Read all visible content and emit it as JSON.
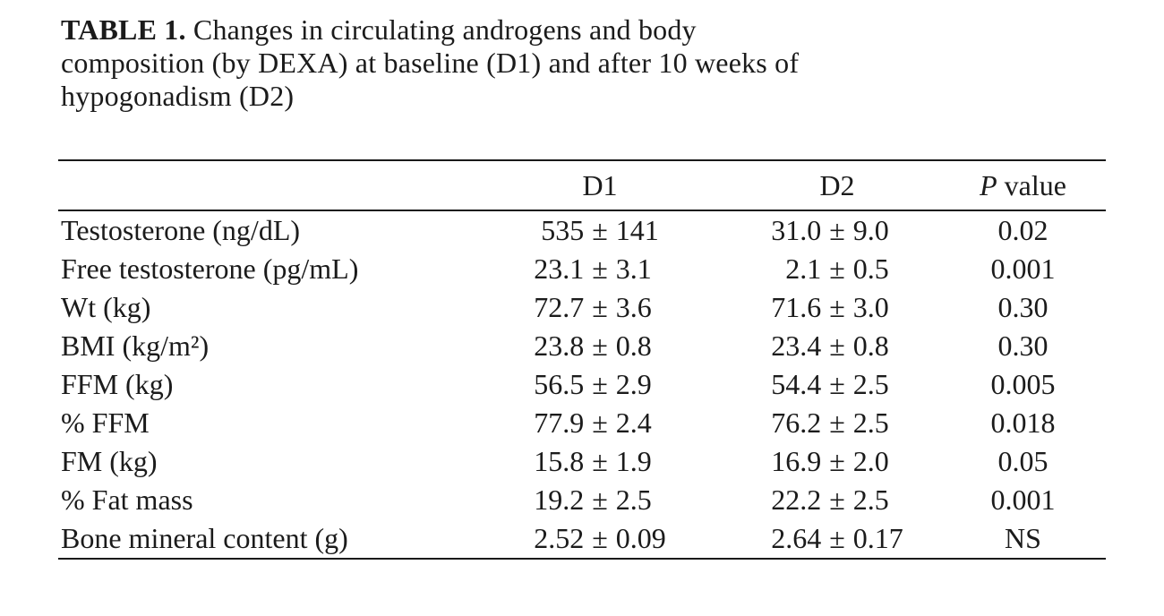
{
  "page": {
    "background": "#ffffff",
    "text_color": "#1b1b1b",
    "rule_color": "#1a1a1a"
  },
  "caption": {
    "label": "TABLE 1.",
    "lines": [
      "Changes in circulating androgens and body",
      "composition (by DEXA) at baseline (D1) and after 10 weeks of",
      "hypogonadism (D2)"
    ],
    "full_text": "TABLE 1. Changes in circulating androgens and body composition (by DEXA) at baseline (D1) and after 10 weeks of hypogonadism (D2)"
  },
  "table": {
    "plus_minus": "±",
    "headers": {
      "parameter": "",
      "d1": "D1",
      "d2": "D2",
      "p_italic": "P",
      "p_rest": "value"
    },
    "rows": [
      {
        "label": "Testosterone (ng/dL)",
        "d1_mean": "535",
        "d1_sd": "141",
        "d2_mean": "31.0",
        "d2_sd": "9.0",
        "p": "0.02"
      },
      {
        "label": "Free testosterone (pg/mL)",
        "d1_mean": "23.1",
        "d1_sd": "3.1",
        "d2_mean": "2.1",
        "d2_sd": "0.5",
        "p": "0.001"
      },
      {
        "label": "Wt (kg)",
        "d1_mean": "72.7",
        "d1_sd": "3.6",
        "d2_mean": "71.6",
        "d2_sd": "3.0",
        "p": "0.30"
      },
      {
        "label": "BMI (kg/m²)",
        "d1_mean": "23.8",
        "d1_sd": "0.8",
        "d2_mean": "23.4",
        "d2_sd": "0.8",
        "p": "0.30"
      },
      {
        "label": "FFM (kg)",
        "d1_mean": "56.5",
        "d1_sd": "2.9",
        "d2_mean": "54.4",
        "d2_sd": "2.5",
        "p": "0.005"
      },
      {
        "label": "% FFM",
        "d1_mean": "77.9",
        "d1_sd": "2.4",
        "d2_mean": "76.2",
        "d2_sd": "2.5",
        "p": "0.018"
      },
      {
        "label": "FM (kg)",
        "d1_mean": "15.8",
        "d1_sd": "1.9",
        "d2_mean": "16.9",
        "d2_sd": "2.0",
        "p": "0.05"
      },
      {
        "label": "% Fat mass",
        "d1_mean": "19.2",
        "d1_sd": "2.5",
        "d2_mean": "22.2",
        "d2_sd": "2.5",
        "p": "0.001"
      },
      {
        "label": "Bone mineral content (g)",
        "d1_mean": "2.52",
        "d1_sd": "0.09",
        "d2_mean": "2.64",
        "d2_sd": "0.17",
        "p": "NS"
      }
    ]
  }
}
